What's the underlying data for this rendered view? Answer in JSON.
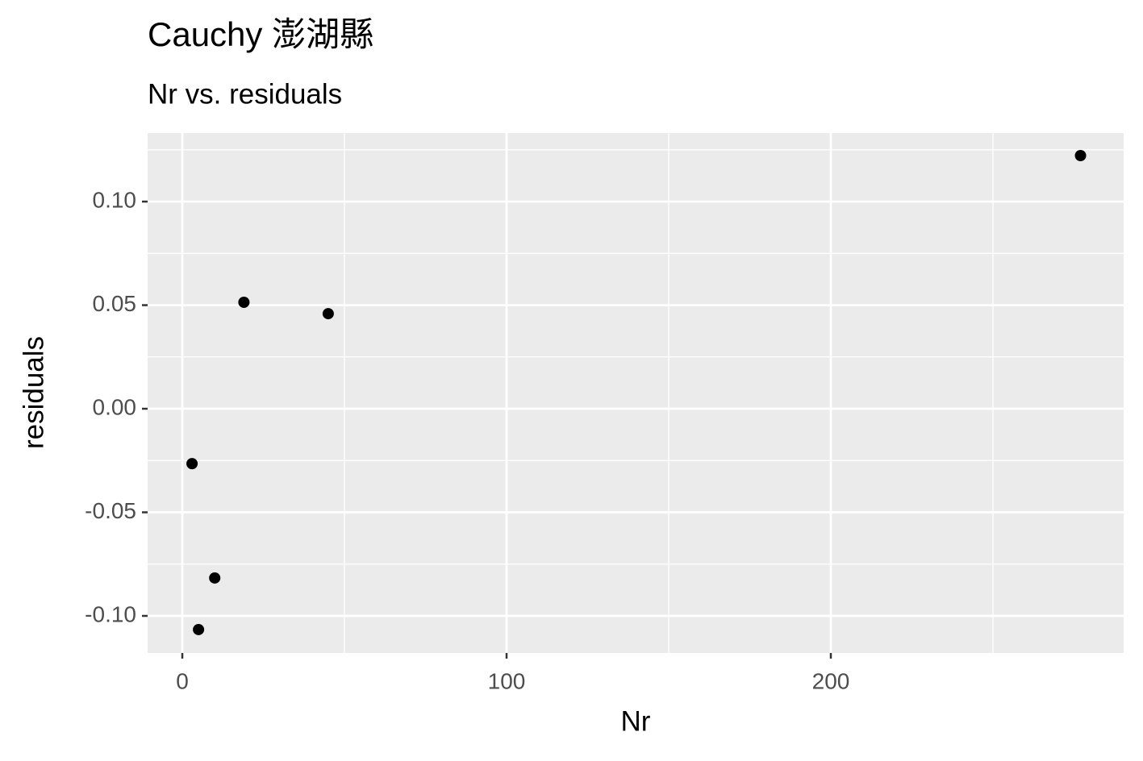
{
  "chart_data": {
    "type": "scatter",
    "title": "Cauchy 澎湖縣",
    "subtitle": "Nr vs. residuals",
    "x_label": "Nr",
    "y_label": "residuals",
    "x": [
      3,
      5,
      10,
      19,
      45,
      277
    ],
    "values": [
      -0.0265,
      -0.1066,
      -0.0817,
      0.0514,
      0.0459,
      0.1222
    ],
    "color": "#000000",
    "xlim": [
      -10.7,
      290.3
    ],
    "ylim": [
      -0.1179,
      0.1331
    ],
    "xticks": [
      0,
      100,
      200
    ],
    "yticks": [
      {
        "value": -0.1,
        "label": "-0.10"
      },
      {
        "value": -0.05,
        "label": "-0.05"
      },
      {
        "value": 0,
        "label": "0.00"
      },
      {
        "value": 0.05,
        "label": "0.05"
      },
      {
        "value": 0.1,
        "label": "0.10"
      }
    ],
    "x_minor_ticks": [
      50,
      150,
      250
    ],
    "y_minor_ticks": [
      -0.075,
      -0.025,
      0.025,
      0.075,
      0.125
    ],
    "grid": true
  }
}
